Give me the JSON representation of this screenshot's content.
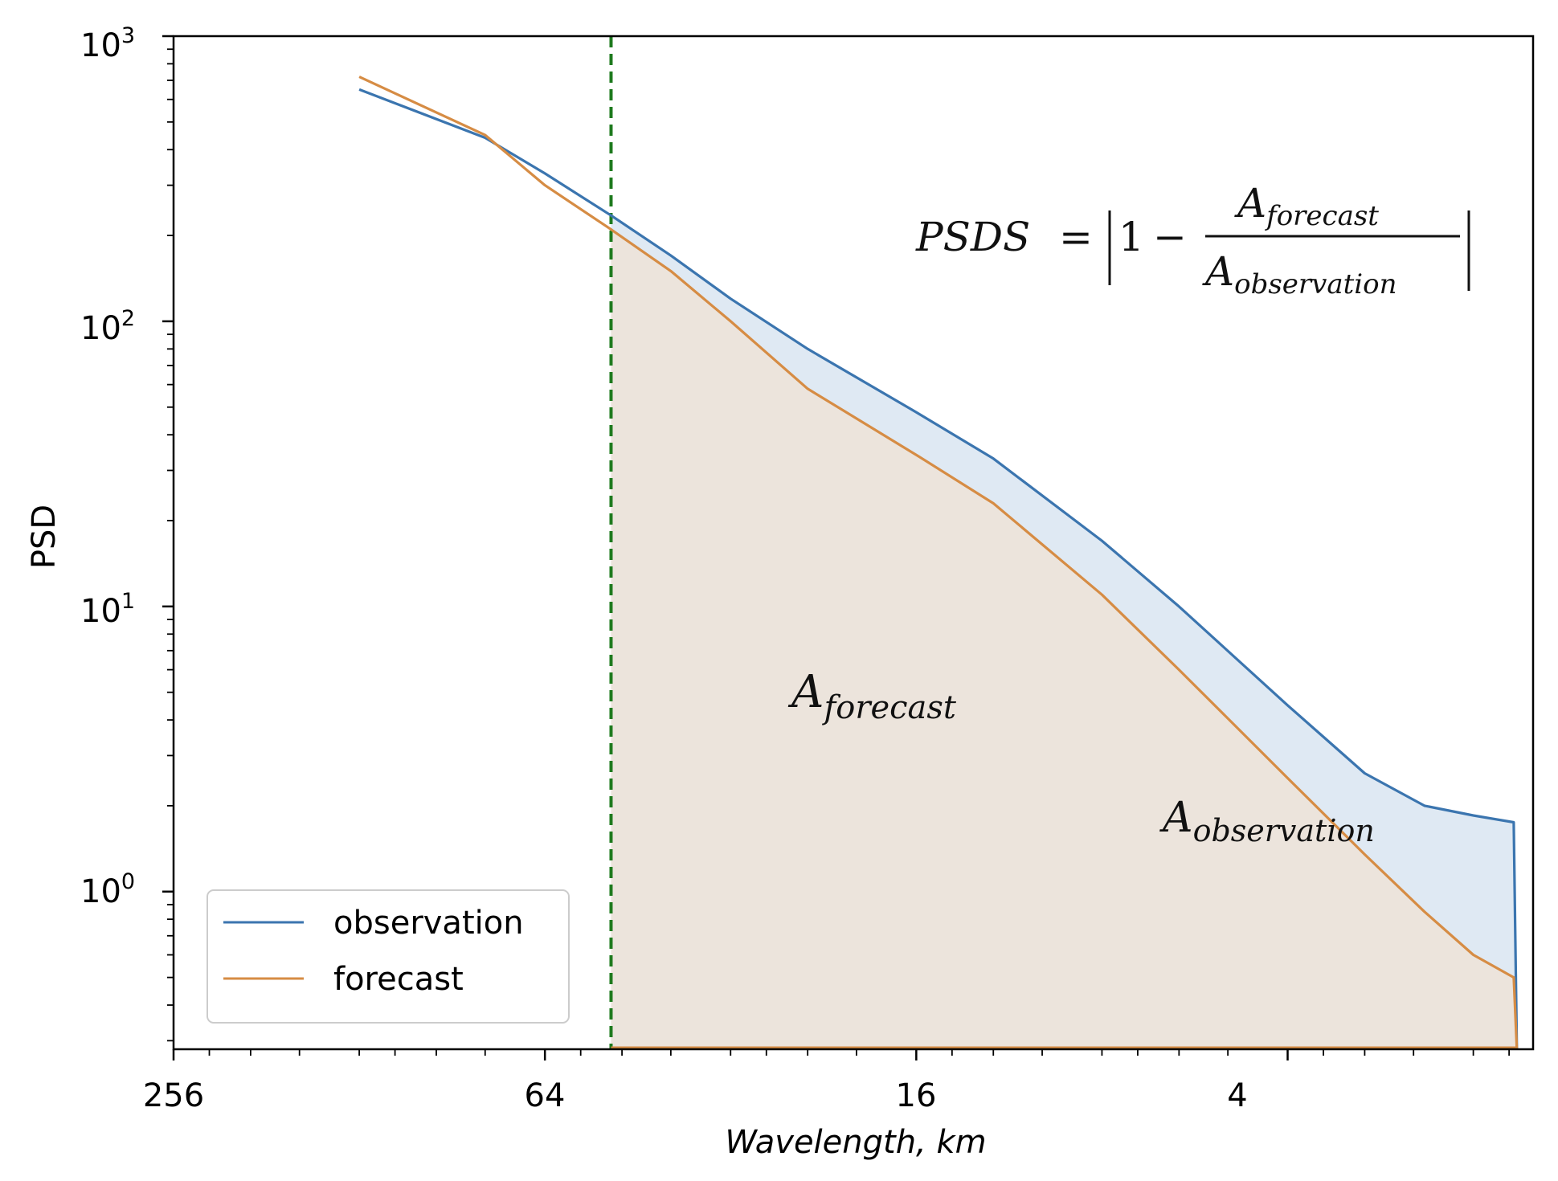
{
  "chart_data": {
    "type": "line",
    "title": "",
    "xlabel": "Wavelength, km",
    "ylabel": "PSD",
    "x_scale": "log2",
    "y_scale": "log10",
    "x_reversed": true,
    "xlim": [
      256,
      1.6
    ],
    "ylim": [
      0.28,
      1000
    ],
    "x_ticks": [
      {
        "value": 256,
        "label": "256"
      },
      {
        "value": 64,
        "label": "64"
      },
      {
        "value": 16,
        "label": "16"
      },
      {
        "value": 4,
        "label": "4"
      }
    ],
    "y_ticks": [
      {
        "value": 1000,
        "base": "10",
        "exp": "3"
      },
      {
        "value": 100,
        "base": "10",
        "exp": "2"
      },
      {
        "value": 10,
        "base": "10",
        "exp": "1"
      },
      {
        "value": 1,
        "base": "10",
        "exp": "0"
      }
    ],
    "cutoff_wavelength": 50,
    "series": [
      {
        "name": "observation",
        "color": "#3b75af",
        "fill_color": "#dfe9f3",
        "points": [
          [
            128,
            650
          ],
          [
            80,
            440
          ],
          [
            64,
            330
          ],
          [
            50,
            235
          ],
          [
            40,
            170
          ],
          [
            32,
            120
          ],
          [
            24,
            80
          ],
          [
            16,
            48
          ],
          [
            12,
            33
          ],
          [
            8,
            17
          ],
          [
            6,
            10
          ],
          [
            4,
            4.5
          ],
          [
            3,
            2.6
          ],
          [
            2.4,
            2.0
          ],
          [
            2.0,
            1.85
          ],
          [
            1.72,
            1.75
          ],
          [
            1.7,
            0.28
          ]
        ]
      },
      {
        "name": "forecast",
        "color": "#d68c44",
        "fill_color": "#ece4dc",
        "points": [
          [
            128,
            720
          ],
          [
            80,
            450
          ],
          [
            64,
            300
          ],
          [
            50,
            210
          ],
          [
            40,
            150
          ],
          [
            32,
            100
          ],
          [
            24,
            58
          ],
          [
            16,
            34
          ],
          [
            12,
            23
          ],
          [
            8,
            11
          ],
          [
            6,
            6
          ],
          [
            4,
            2.5
          ],
          [
            3,
            1.35
          ],
          [
            2.4,
            0.85
          ],
          [
            2.0,
            0.6
          ],
          [
            1.72,
            0.5
          ],
          [
            1.7,
            0.28
          ]
        ]
      }
    ],
    "annotations": {
      "formula": {
        "lhs": "PSDS",
        "eq": "=",
        "one": "1",
        "minus": "−",
        "num_base": "A",
        "num_sub": "forecast",
        "den_base": "A",
        "den_sub": "observation"
      },
      "area_forecast": {
        "base": "A",
        "sub": "forecast"
      },
      "area_observation": {
        "base": "A",
        "sub": "observation"
      }
    },
    "legend": {
      "position": "lower-left",
      "entries": [
        "observation",
        "forecast"
      ]
    },
    "cutoff_line_color": "#1e7a1e"
  }
}
